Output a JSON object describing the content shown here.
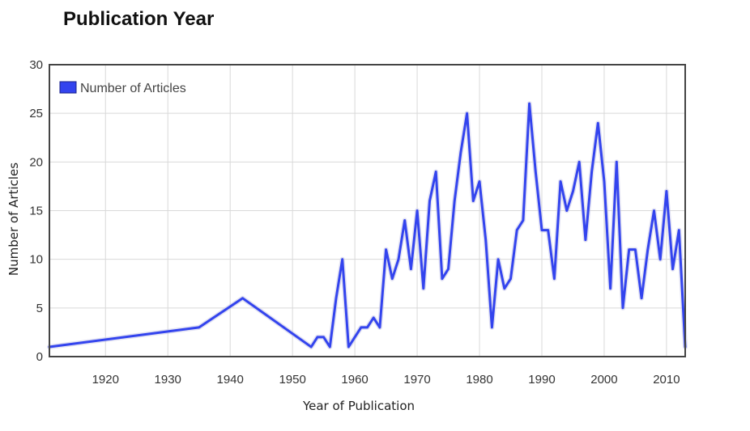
{
  "chart_data": {
    "type": "line",
    "title": "Publication Year",
    "xlabel": "Year of Publication",
    "ylabel": "Number of Articles",
    "xlim": [
      1911,
      2013
    ],
    "ylim": [
      0,
      30
    ],
    "xticks": [
      1920,
      1930,
      1940,
      1950,
      1960,
      1970,
      1980,
      1990,
      2000,
      2010
    ],
    "yticks": [
      0,
      5,
      10,
      15,
      20,
      25,
      30
    ],
    "grid": true,
    "legend_position": "top-left",
    "series": [
      {
        "name": "Number of Articles",
        "color": "#3344ee",
        "points": [
          [
            1911,
            1
          ],
          [
            1935,
            3
          ],
          [
            1942,
            6
          ],
          [
            1953,
            1
          ],
          [
            1954,
            2
          ],
          [
            1955,
            2
          ],
          [
            1956,
            1
          ],
          [
            1957,
            6
          ],
          [
            1958,
            10
          ],
          [
            1959,
            1
          ],
          [
            1960,
            2
          ],
          [
            1961,
            3
          ],
          [
            1962,
            3
          ],
          [
            1963,
            4
          ],
          [
            1964,
            3
          ],
          [
            1965,
            11
          ],
          [
            1966,
            8
          ],
          [
            1967,
            10
          ],
          [
            1968,
            14
          ],
          [
            1969,
            9
          ],
          [
            1970,
            15
          ],
          [
            1971,
            7
          ],
          [
            1972,
            16
          ],
          [
            1973,
            19
          ],
          [
            1974,
            8
          ],
          [
            1975,
            9
          ],
          [
            1976,
            16
          ],
          [
            1977,
            21
          ],
          [
            1978,
            25
          ],
          [
            1979,
            16
          ],
          [
            1980,
            18
          ],
          [
            1981,
            12
          ],
          [
            1982,
            3
          ],
          [
            1983,
            10
          ],
          [
            1984,
            7
          ],
          [
            1985,
            8
          ],
          [
            1986,
            13
          ],
          [
            1987,
            14
          ],
          [
            1988,
            26
          ],
          [
            1989,
            19
          ],
          [
            1990,
            13
          ],
          [
            1991,
            13
          ],
          [
            1992,
            8
          ],
          [
            1993,
            18
          ],
          [
            1994,
            15
          ],
          [
            1995,
            17
          ],
          [
            1996,
            20
          ],
          [
            1997,
            12
          ],
          [
            1998,
            19
          ],
          [
            1999,
            24
          ],
          [
            2000,
            18
          ],
          [
            2001,
            7
          ],
          [
            2002,
            20
          ],
          [
            2003,
            5
          ],
          [
            2004,
            11
          ],
          [
            2005,
            11
          ],
          [
            2006,
            6
          ],
          [
            2007,
            11
          ],
          [
            2008,
            15
          ],
          [
            2009,
            10
          ],
          [
            2010,
            17
          ],
          [
            2011,
            9
          ],
          [
            2012,
            13
          ],
          [
            2013,
            1
          ]
        ]
      }
    ]
  }
}
